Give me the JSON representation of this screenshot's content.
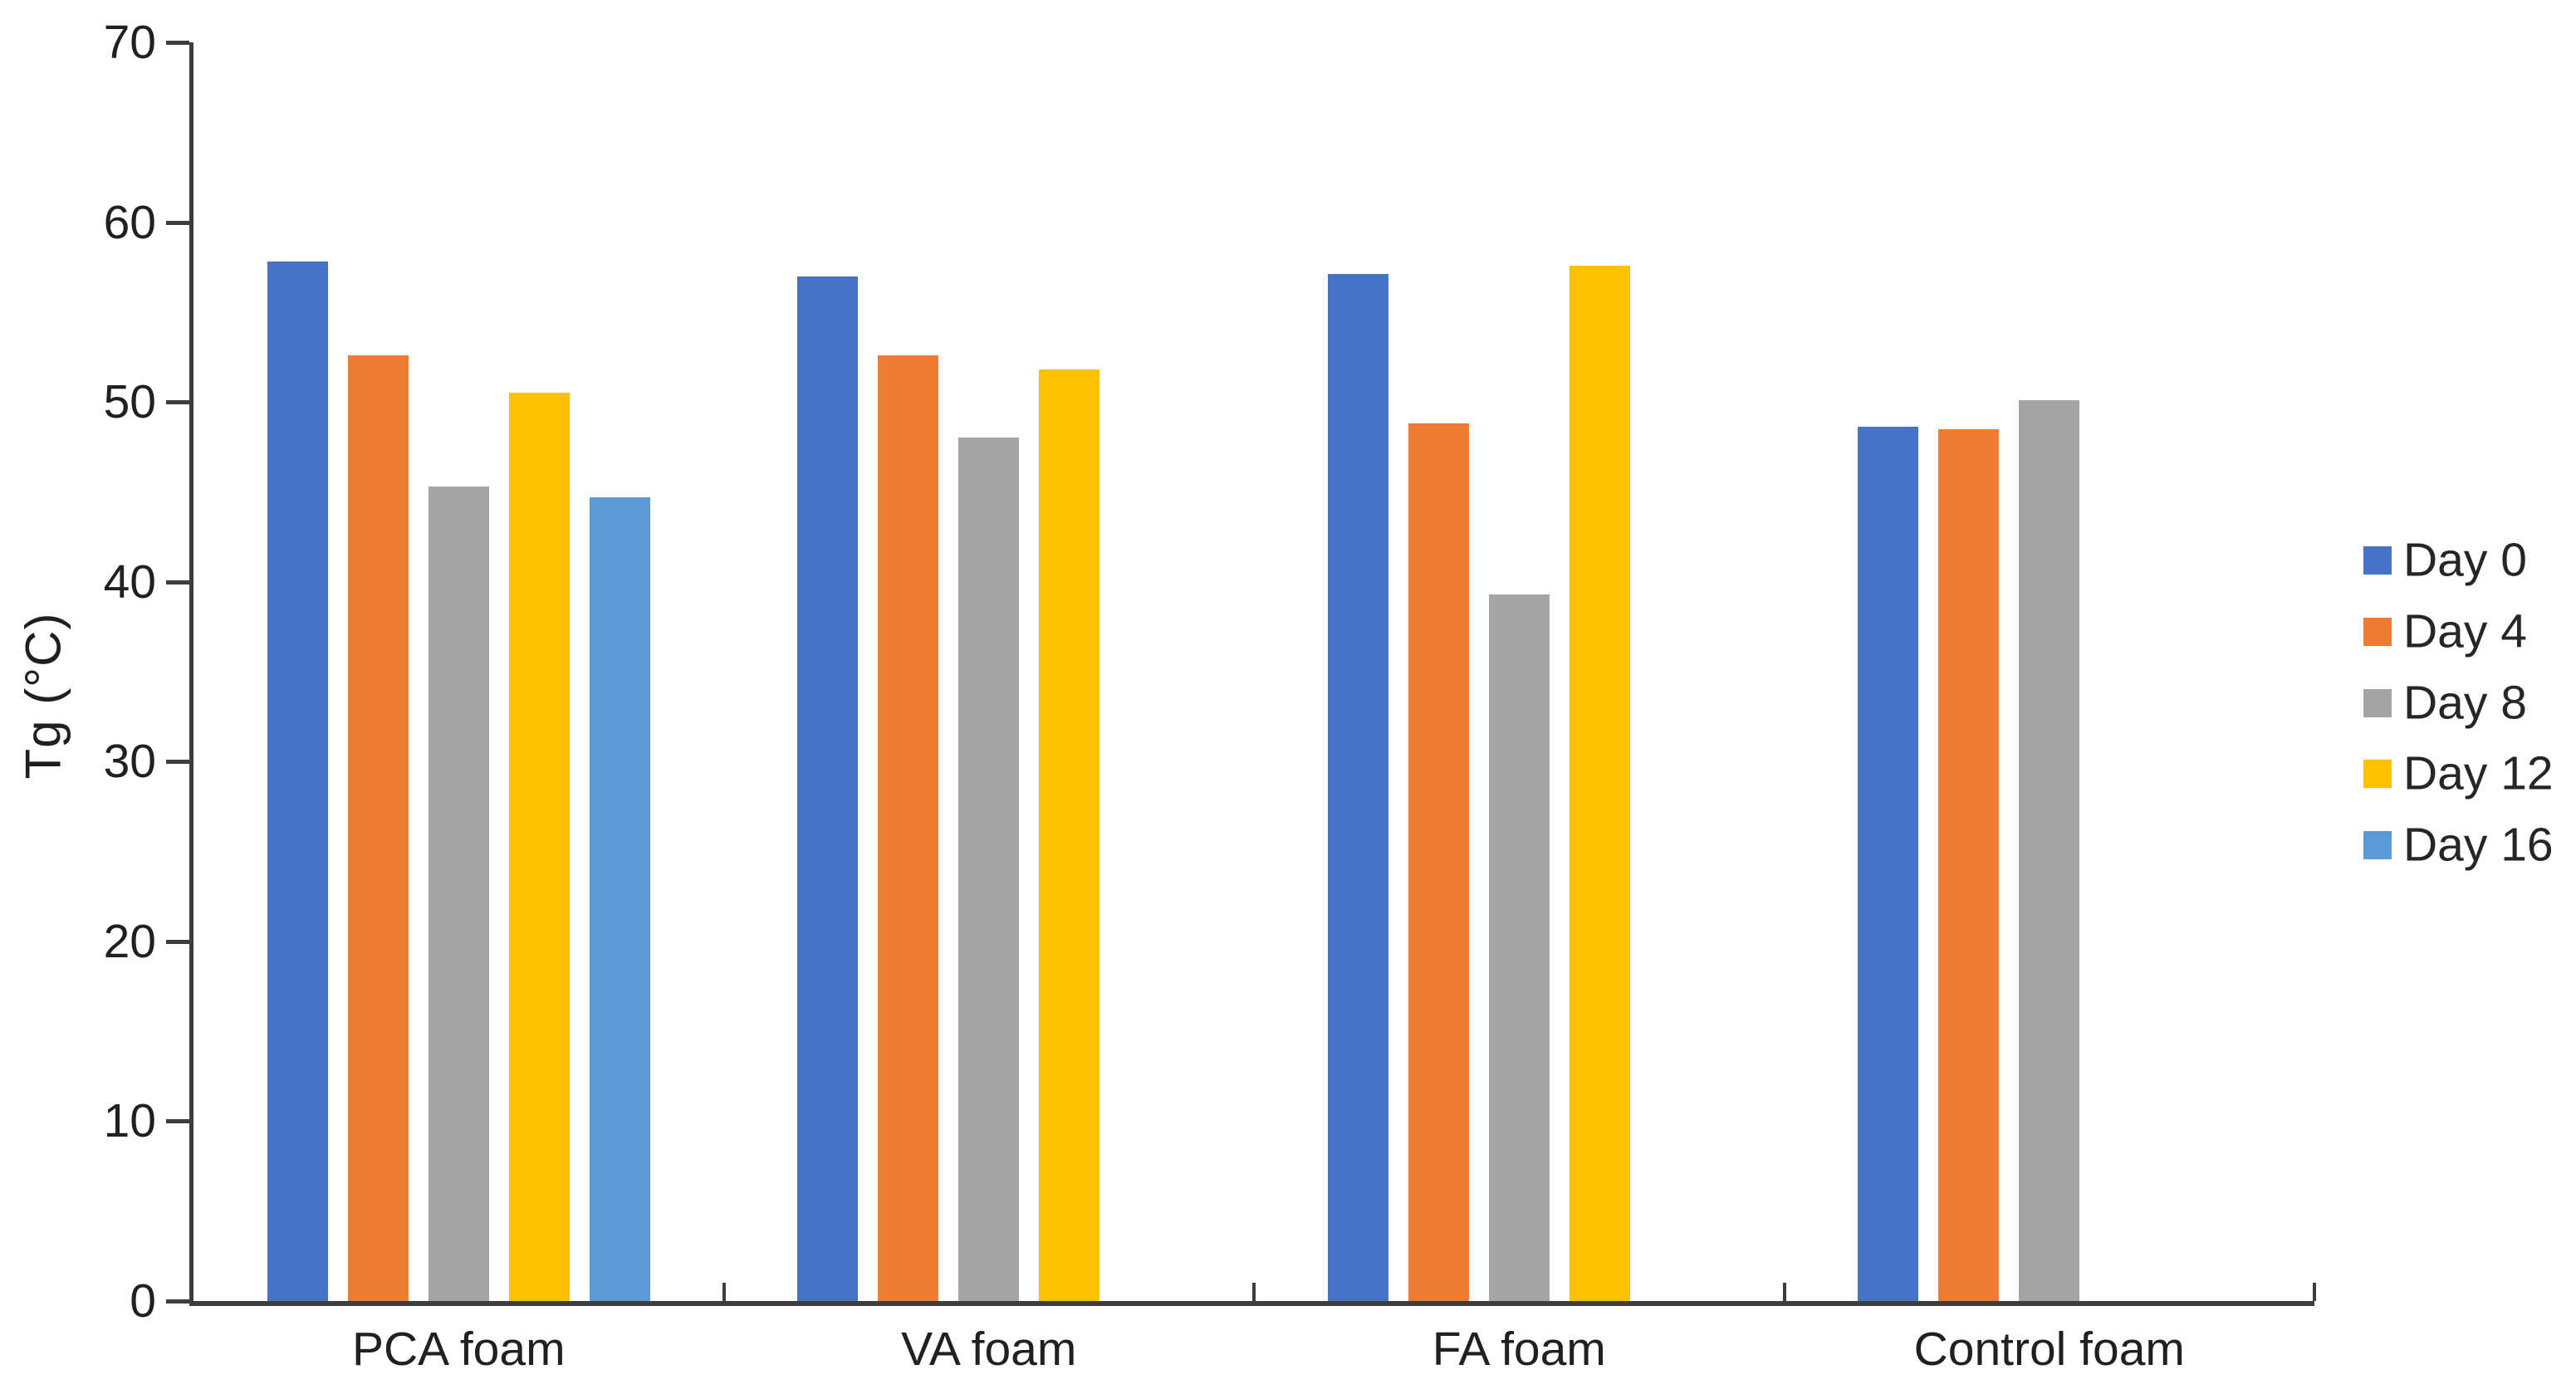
{
  "chart_data": {
    "type": "bar",
    "title": "",
    "xlabel": "",
    "ylabel": "Tg (°C)",
    "ylim": [
      0,
      70
    ],
    "ytick_step": 10,
    "yticks": [
      0,
      10,
      20,
      30,
      40,
      50,
      60,
      70
    ],
    "grid": false,
    "legend_position": "right",
    "categories": [
      "PCA foam",
      "VA foam",
      "FA foam",
      "Control foam"
    ],
    "series": [
      {
        "name": "Day 0",
        "color": "#4472C4",
        "values": [
          57.8,
          57.0,
          57.1,
          48.6
        ]
      },
      {
        "name": "Day 4",
        "color": "#ED7D31",
        "values": [
          52.6,
          52.6,
          48.8,
          48.5
        ]
      },
      {
        "name": "Day 8",
        "color": "#A5A5A5",
        "values": [
          45.3,
          48.0,
          39.3,
          50.1
        ]
      },
      {
        "name": "Day 12",
        "color": "#FFC000",
        "values": [
          50.5,
          51.8,
          57.6,
          null
        ]
      },
      {
        "name": "Day 16",
        "color": "#5B9BD5",
        "values": [
          44.7,
          null,
          null,
          null
        ]
      }
    ],
    "axis_color": "#3d3d3d",
    "text_color": "#202020"
  }
}
